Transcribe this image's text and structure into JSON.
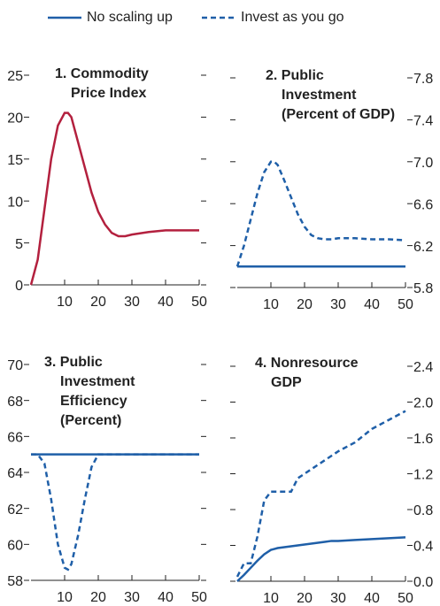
{
  "chart_data": [
    {
      "type": "line",
      "title": [
        "1. Commodity",
        "Price Index"
      ],
      "yaxis": "left",
      "x": [
        0,
        2,
        4,
        6,
        8,
        10,
        11,
        12,
        14,
        16,
        18,
        20,
        22,
        24,
        26,
        28,
        30,
        35,
        40,
        45,
        50
      ],
      "xlim": [
        0,
        50
      ],
      "xticks": [
        10,
        20,
        30,
        40,
        50
      ],
      "ylim": [
        0,
        25
      ],
      "yticks": [
        0,
        5,
        10,
        15,
        20,
        25
      ],
      "series": [
        {
          "color": "#b3203e",
          "style": "solid",
          "values": [
            0,
            3,
            9,
            15,
            19,
            20.5,
            20.5,
            20,
            17,
            14,
            11,
            8.7,
            7.2,
            6.2,
            5.8,
            5.8,
            6,
            6.3,
            6.5,
            6.5,
            6.5
          ]
        }
      ]
    },
    {
      "type": "line",
      "title": [
        "2. Public",
        "Investment",
        "(Percent of GDP)"
      ],
      "yaxis": "right",
      "x": [
        0,
        2,
        4,
        6,
        8,
        10,
        11,
        12,
        14,
        16,
        18,
        20,
        22,
        24,
        26,
        28,
        30,
        35,
        40,
        45,
        50
      ],
      "xlim": [
        0,
        50
      ],
      "xticks": [
        10,
        20,
        30,
        40,
        50
      ],
      "ylim": [
        5.8,
        7.8
      ],
      "yticks": [
        5.8,
        6.2,
        6.6,
        {
          "value": 7,
          "label": "7.0"
        },
        7.4,
        7.8
      ],
      "series": [
        {
          "name": "No scaling up",
          "color": "#1f5fa8",
          "style": "solid",
          "values": [
            6,
            6,
            6,
            6,
            6,
            6,
            6,
            6,
            6,
            6,
            6,
            6,
            6,
            6,
            6,
            6,
            6,
            6,
            6,
            6,
            6
          ]
        },
        {
          "name": "Invest as you go",
          "color": "#1f5fa8",
          "style": "dashed",
          "values": [
            6,
            6.2,
            6.45,
            6.7,
            6.9,
            7,
            7,
            6.97,
            6.82,
            6.66,
            6.5,
            6.38,
            6.3,
            6.27,
            6.26,
            6.26,
            6.27,
            6.27,
            6.26,
            6.26,
            6.25
          ]
        }
      ]
    },
    {
      "type": "line",
      "title": [
        "3. Public",
        "Investment",
        "Efficiency",
        "(Percent)"
      ],
      "yaxis": "left",
      "x": [
        0,
        2,
        4,
        6,
        8,
        10,
        11,
        12,
        14,
        16,
        18,
        20,
        22,
        24,
        26,
        28,
        30,
        35,
        40,
        45,
        50
      ],
      "xlim": [
        0,
        50
      ],
      "xticks": [
        10,
        20,
        30,
        40,
        50
      ],
      "ylim": [
        58,
        70
      ],
      "yticks": [
        58,
        60,
        62,
        64,
        66,
        68,
        70
      ],
      "series": [
        {
          "color": "#1f5fa8",
          "style": "solid",
          "values": [
            65,
            65,
            65,
            65,
            65,
            65,
            65,
            65,
            65,
            65,
            65,
            65,
            65,
            65,
            65,
            65,
            65,
            65,
            65,
            65,
            65
          ]
        },
        {
          "color": "#1f5fa8",
          "style": "dashed",
          "values": [
            65,
            65,
            64.5,
            62.5,
            60,
            58.7,
            58.6,
            58.9,
            60.5,
            62.5,
            64.3,
            65,
            65,
            65,
            65,
            65,
            65,
            65,
            65,
            65,
            65
          ]
        }
      ]
    },
    {
      "type": "line",
      "title": [
        "4. Nonresource",
        "GDP"
      ],
      "yaxis": "right",
      "x": [
        0,
        2,
        4,
        6,
        8,
        10,
        11,
        12,
        14,
        16,
        18,
        20,
        22,
        24,
        26,
        28,
        30,
        35,
        40,
        45,
        50
      ],
      "xlim": [
        0,
        50
      ],
      "xticks": [
        10,
        20,
        30,
        40,
        50
      ],
      "ylim": [
        0,
        2.4
      ],
      "yticks": [
        {
          "value": 0,
          "label": "0.0"
        },
        0.4,
        0.8,
        1.2,
        1.6,
        {
          "value": 2,
          "label": "2.0"
        },
        2.4
      ],
      "series": [
        {
          "color": "#1f5fa8",
          "style": "solid",
          "values": [
            0,
            0.07,
            0.15,
            0.23,
            0.3,
            0.35,
            0.36,
            0.37,
            0.38,
            0.39,
            0.4,
            0.41,
            0.42,
            0.43,
            0.44,
            0.45,
            0.45,
            0.46,
            0.47,
            0.48,
            0.49
          ]
        },
        {
          "color": "#1f5fa8",
          "style": "dashed",
          "values": [
            0.05,
            0.2,
            0.2,
            0.5,
            0.9,
            1,
            1,
            1,
            1,
            1,
            1.15,
            1.2,
            1.25,
            1.3,
            1.35,
            1.4,
            1.45,
            1.55,
            1.7,
            1.8,
            1.9
          ]
        }
      ]
    }
  ]
}
